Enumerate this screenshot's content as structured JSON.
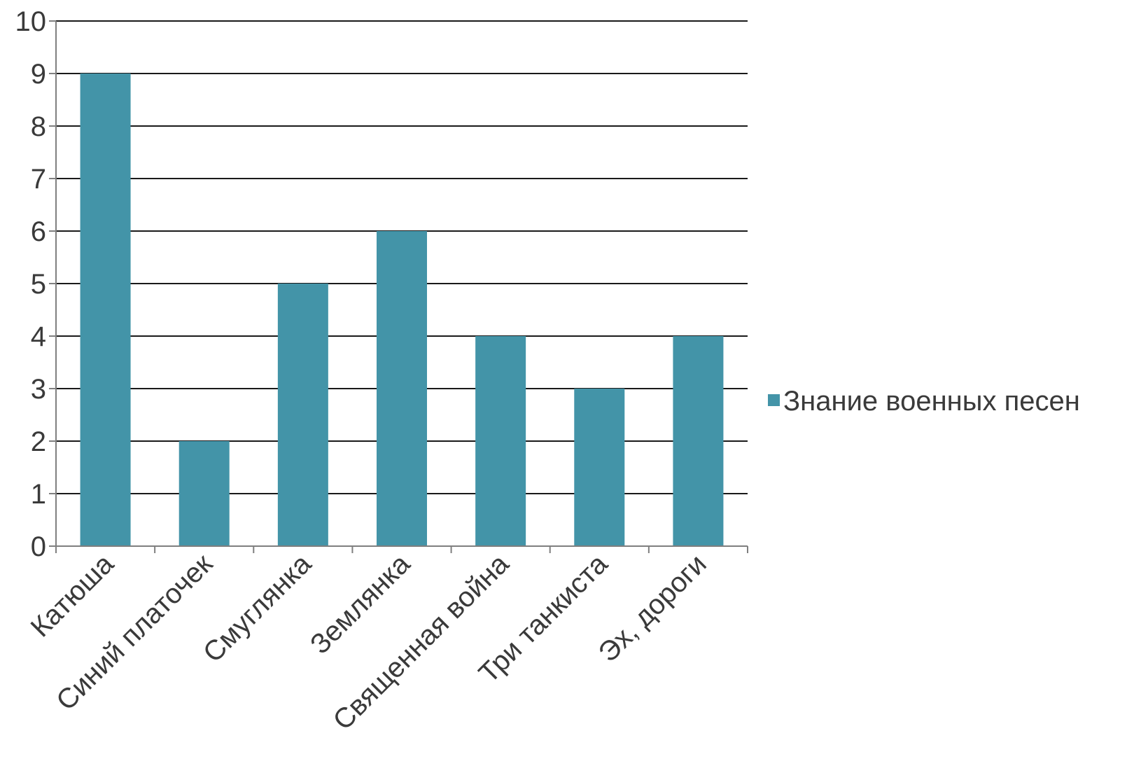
{
  "chart_data": {
    "type": "bar",
    "categories": [
      "Катюша",
      "Синий платочек",
      "Смуглянка",
      "Землянка",
      "Священная война",
      "Три танкиста",
      "Эх, дороги"
    ],
    "series": [
      {
        "name": "Знание военных песен",
        "values": [
          9,
          2,
          5,
          6,
          4,
          3,
          4
        ],
        "color": "#4394a8"
      }
    ],
    "ylim": [
      0,
      10
    ],
    "yticks": [
      0,
      1,
      2,
      3,
      4,
      5,
      6,
      7,
      8,
      9,
      10
    ],
    "grid": true,
    "legend_position": "right",
    "colors": {
      "gridline": "#1a1a1a",
      "axis": "#7f7f7f",
      "text": "#3a3a3a"
    }
  }
}
